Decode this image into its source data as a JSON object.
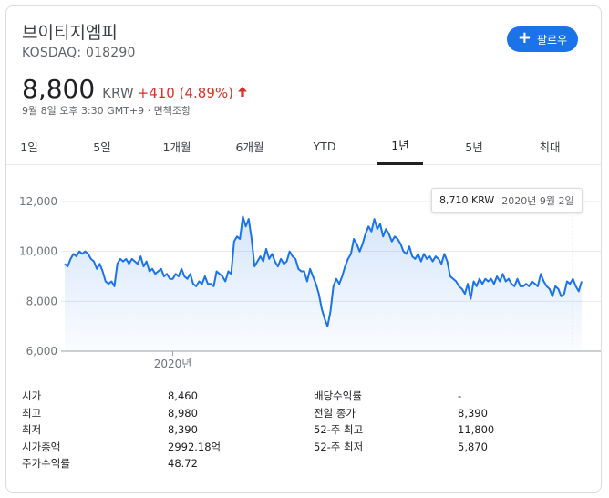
{
  "header": {
    "company_name": "브이티지엠피",
    "ticker": "KOSDAQ: 018290",
    "follow_label": "팔로우"
  },
  "quote": {
    "price": "8,800",
    "currency": "KRW",
    "change": "+410 (4.89%)",
    "direction": "up",
    "timestamp": "9월 8일 오후 3:30 GMT+9 · ",
    "disclaimer": "면책조항"
  },
  "colors": {
    "accent": "#1a73e8",
    "up": "#d93025",
    "line": "#1a73e8"
  },
  "tabs": [
    {
      "label": "1일",
      "active": false
    },
    {
      "label": "5일",
      "active": false
    },
    {
      "label": "1개월",
      "active": false
    },
    {
      "label": "6개월",
      "active": false
    },
    {
      "label": "YTD",
      "active": false
    },
    {
      "label": "1년",
      "active": true
    },
    {
      "label": "5년",
      "active": false
    },
    {
      "label": "최대",
      "active": false
    }
  ],
  "tooltip": {
    "price": "8,710 KRW",
    "date": "2020년 9월 2일"
  },
  "chart_data": {
    "type": "area",
    "ylim": [
      6000,
      12000
    ],
    "yticks": [
      6000,
      8000,
      10000,
      12000
    ],
    "ytick_labels": [
      "6,000",
      "8,000",
      "10,000",
      "12,000"
    ],
    "xtick_labels": [
      {
        "label": "2020년",
        "index": 37
      }
    ],
    "grid": true,
    "values": [
      9500,
      9400,
      9700,
      9900,
      9800,
      10000,
      9900,
      10000,
      9900,
      9700,
      9600,
      9300,
      9500,
      9200,
      8800,
      8700,
      8800,
      8600,
      9500,
      9700,
      9600,
      9700,
      9500,
      9700,
      9600,
      9500,
      9800,
      9400,
      9600,
      9200,
      9300,
      9100,
      9200,
      9300,
      9000,
      9100,
      8900,
      8900,
      9100,
      9000,
      9300,
      9000,
      8900,
      9100,
      8700,
      8600,
      8800,
      8700,
      9000,
      8700,
      8700,
      8600,
      9200,
      9100,
      9000,
      8800,
      9200,
      9100,
      10400,
      10600,
      10500,
      11400,
      11000,
      11300,
      10500,
      9400,
      9600,
      9800,
      9600,
      10100,
      9700,
      9900,
      9600,
      9400,
      9700,
      9500,
      9600,
      10000,
      9800,
      9700,
      9300,
      9200,
      9200,
      8800,
      9300,
      9000,
      8700,
      8300,
      7700,
      7300,
      7000,
      7600,
      8600,
      8900,
      8700,
      9000,
      9400,
      9700,
      9900,
      10500,
      10300,
      10000,
      10300,
      10700,
      11000,
      10800,
      11300,
      10900,
      11100,
      10600,
      10900,
      10700,
      10400,
      10600,
      10500,
      10300,
      10000,
      9900,
      10200,
      9800,
      9700,
      9900,
      9600,
      9900,
      9700,
      9800,
      9600,
      9800,
      9700,
      9500,
      9900,
      9600,
      9000,
      8900,
      8800,
      8600,
      8500,
      8300,
      8700,
      8100,
      8800,
      8600,
      8900,
      8700,
      8900,
      8800,
      8900,
      8700,
      9000,
      8800,
      9100,
      8800,
      8900,
      8700,
      8600,
      8900,
      8600,
      8600,
      8700,
      8600,
      8800,
      8700,
      8600,
      9100,
      8800,
      8600,
      8500,
      8200,
      8600,
      8500,
      8200,
      8300,
      8800,
      8700,
      8900,
      8600,
      8400,
      8800
    ]
  },
  "stats": {
    "left": [
      {
        "label": "시가",
        "value": "8,460"
      },
      {
        "label": "최고",
        "value": "8,980"
      },
      {
        "label": "최저",
        "value": "8,390"
      },
      {
        "label": "시가총액",
        "value": "2992.18억"
      },
      {
        "label": "주가수익률",
        "value": "48.72"
      }
    ],
    "right": [
      {
        "label": "배당수익률",
        "value": "-"
      },
      {
        "label": "전일 종가",
        "value": "8,390"
      },
      {
        "label": "52-주 최고",
        "value": "11,800"
      },
      {
        "label": "52-주 최저",
        "value": "5,870"
      }
    ]
  }
}
